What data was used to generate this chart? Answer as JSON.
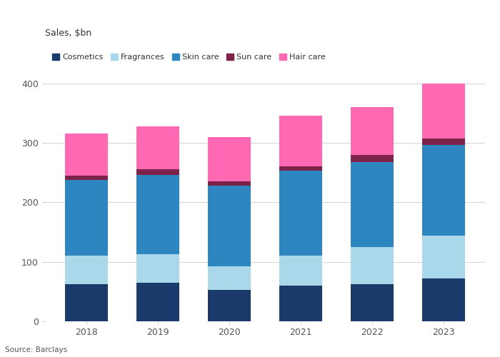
{
  "years": [
    "2018",
    "2019",
    "2020",
    "2021",
    "2022",
    "2023"
  ],
  "categories": [
    "Cosmetics",
    "Fragrances",
    "Skin care",
    "Sun care",
    "Hair care"
  ],
  "colors": [
    "#1a3a6b",
    "#a8d8ea",
    "#2e86c1",
    "#7d2248",
    "#ff69b4"
  ],
  "values": {
    "Cosmetics": [
      63,
      65,
      53,
      60,
      63,
      72
    ],
    "Fragrances": [
      47,
      48,
      40,
      50,
      62,
      72
    ],
    "Skin care": [
      128,
      133,
      135,
      143,
      143,
      153
    ],
    "Sun care": [
      7,
      10,
      7,
      8,
      12,
      10
    ],
    "Hair care": [
      70,
      72,
      75,
      85,
      80,
      93
    ]
  },
  "ylabel": "Sales, $bn",
  "ylim": [
    0,
    420
  ],
  "yticks": [
    0,
    100,
    200,
    300,
    400
  ],
  "source": "Source: Barclays",
  "bg_color": "#ffffff",
  "grid_color": "#cccccc",
  "text_color": "#333333",
  "tick_color": "#555555",
  "bar_width": 0.6
}
